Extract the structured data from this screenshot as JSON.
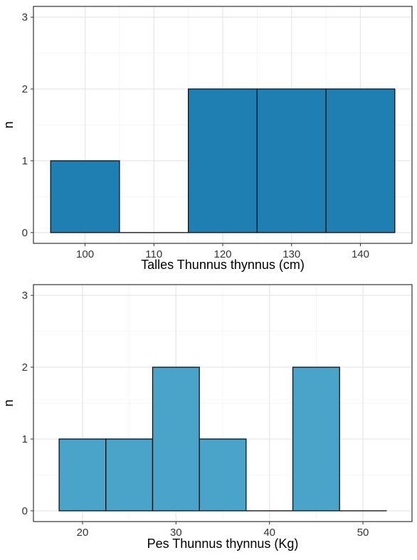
{
  "chart_data": [
    {
      "type": "bar",
      "subtype": "histogram",
      "xlabel": "Talles Thunnus thynnus (cm)",
      "ylabel": "n",
      "bin_width": 10,
      "bin_centers": [
        100,
        110,
        120,
        130,
        140
      ],
      "values": [
        1,
        0,
        2,
        2,
        2
      ],
      "xlim": [
        92.5,
        147.5
      ],
      "ylim": [
        -0.15,
        3.15
      ],
      "x_ticks": [
        100,
        110,
        120,
        130,
        140
      ],
      "y_ticks": [
        0,
        1,
        2,
        3
      ],
      "bar_color": "#1f7fb3",
      "grid": true
    },
    {
      "type": "bar",
      "subtype": "histogram",
      "xlabel": "Pes Thunnus thynnus (Kg)",
      "ylabel": "n",
      "bin_width": 5,
      "bin_centers": [
        20,
        25,
        30,
        35,
        40,
        45,
        50
      ],
      "values": [
        1,
        1,
        2,
        1,
        0,
        2,
        0
      ],
      "xlim": [
        14.75,
        55.25
      ],
      "ylim": [
        -0.15,
        3.15
      ],
      "x_ticks": [
        20,
        30,
        40,
        50
      ],
      "y_ticks": [
        0,
        1,
        2,
        3
      ],
      "bar_color": "#4aa3c8",
      "grid": true
    }
  ]
}
